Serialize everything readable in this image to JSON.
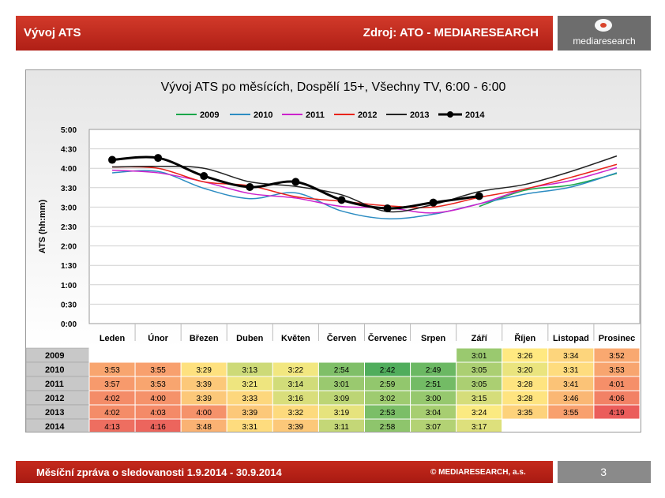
{
  "header": {
    "left": "Vývoj ATS",
    "right": "Zdroj: ATO - MEDIARESEARCH"
  },
  "logo": {
    "text": "mediaresearch"
  },
  "footer": {
    "left": "Měsíční zpráva o sledovanosti 1.9.2014 - 30.9.2014",
    "right": "© MEDIARESEARCH, a.s.",
    "page": "3"
  },
  "chart_data": {
    "type": "line",
    "title": "Vývoj ATS po měsících, Dospělí 15+, Všechny TV, 6:00 - 6:00",
    "ylabel": "ATS (hh:mm)",
    "xlabel": "",
    "categories": [
      "Leden",
      "Únor",
      "Březen",
      "Duben",
      "Květen",
      "Červen",
      "Červenec",
      "Srpen",
      "Září",
      "Říjen",
      "Listopad",
      "Prosinec"
    ],
    "yticks": [
      "0:00",
      "0:30",
      "1:00",
      "1:30",
      "2:00",
      "2:30",
      "3:00",
      "3:30",
      "4:00",
      "4:30",
      "5:00"
    ],
    "ylim": [
      0,
      300
    ],
    "grid": true,
    "legend_position": "top",
    "series": [
      {
        "name": "2009",
        "color": "#1aa64a",
        "markers": false,
        "width": 1.5,
        "values": [
          null,
          null,
          null,
          null,
          null,
          null,
          null,
          null,
          181,
          206,
          214,
          232
        ],
        "table": [
          "",
          "",
          "",
          "",
          "",
          "",
          "",
          "",
          "3:01",
          "3:26",
          "3:34",
          "3:52"
        ]
      },
      {
        "name": "2010",
        "color": "#2c8cc2",
        "markers": false,
        "width": 1.5,
        "values": [
          233,
          235,
          209,
          193,
          202,
          174,
          162,
          169,
          185,
          200,
          211,
          233
        ],
        "table": [
          "3:53",
          "3:55",
          "3:29",
          "3:13",
          "3:22",
          "2:54",
          "2:42",
          "2:49",
          "3:05",
          "3:20",
          "3:31",
          "3:53"
        ]
      },
      {
        "name": "2011",
        "color": "#cc22cc",
        "markers": false,
        "width": 1.5,
        "values": [
          237,
          233,
          219,
          201,
          194,
          181,
          179,
          171,
          185,
          208,
          221,
          241
        ],
        "table": [
          "3:57",
          "3:53",
          "3:39",
          "3:21",
          "3:14",
          "3:01",
          "2:59",
          "2:51",
          "3:05",
          "3:28",
          "3:41",
          "4:01"
        ]
      },
      {
        "name": "2012",
        "color": "#e8231a",
        "markers": false,
        "width": 1.5,
        "values": [
          242,
          240,
          219,
          213,
          196,
          189,
          182,
          180,
          195,
          208,
          226,
          246
        ],
        "table": [
          "4:02",
          "4:00",
          "3:39",
          "3:33",
          "3:16",
          "3:09",
          "3:02",
          "3:00",
          "3:15",
          "3:28",
          "3:46",
          "4:06"
        ]
      },
      {
        "name": "2013",
        "color": "#222222",
        "markers": false,
        "width": 1.5,
        "values": [
          242,
          243,
          240,
          219,
          212,
          199,
          173,
          184,
          204,
          215,
          235,
          259
        ],
        "table": [
          "4:02",
          "4:03",
          "4:00",
          "3:39",
          "3:32",
          "3:19",
          "2:53",
          "3:04",
          "3:24",
          "3:35",
          "3:55",
          "4:19"
        ]
      },
      {
        "name": "2014",
        "color": "#000000",
        "markers": true,
        "width": 3,
        "values": [
          253,
          256,
          228,
          211,
          219,
          191,
          178,
          187,
          197,
          null,
          null,
          null
        ],
        "table": [
          "4:13",
          "4:16",
          "3:48",
          "3:31",
          "3:39",
          "3:11",
          "2:58",
          "3:07",
          "3:17",
          "",
          "",
          ""
        ]
      }
    ]
  }
}
